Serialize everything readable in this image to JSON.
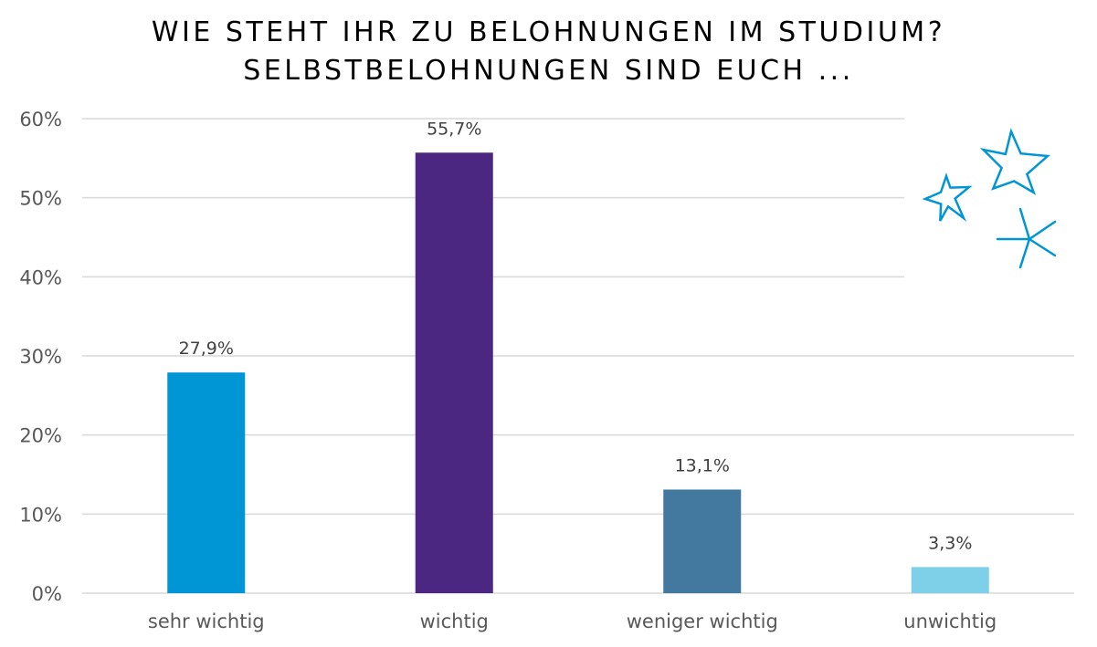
{
  "chart_data": {
    "type": "bar",
    "title": "WIE STEHT IHR ZU BELOHNUNGEN IM STUDIUM?",
    "subtitle": "SELBSTBELOHNUNGEN SIND EUCH ...",
    "xlabel": "",
    "ylabel": "",
    "categories": [
      "sehr wichtig",
      "wichtig",
      "weniger wichtig",
      "unwichtig"
    ],
    "values": [
      27.9,
      55.7,
      13.1,
      3.3
    ],
    "data_labels": [
      "27,9%",
      "55,7%",
      "13,1%",
      "3,3%"
    ],
    "ylim": [
      0,
      60
    ],
    "yticks": [
      0,
      10,
      20,
      30,
      40,
      50,
      60
    ],
    "ytick_labels": [
      "0%",
      "10%",
      "20%",
      "30%",
      "40%",
      "50%",
      "60%"
    ],
    "grid": true,
    "legend": "none",
    "bar_colors": [
      "#0096d6",
      "#4b2782",
      "#43799f",
      "#7ecfe8"
    ],
    "grid_color": "#d9d9d9",
    "tick_label_color": "#595959",
    "data_label_color": "#404040",
    "decoration": {
      "icons": [
        "star-outline-icon",
        "star-outline-icon",
        "sparkle-icon"
      ],
      "color": "#0096d6"
    }
  }
}
